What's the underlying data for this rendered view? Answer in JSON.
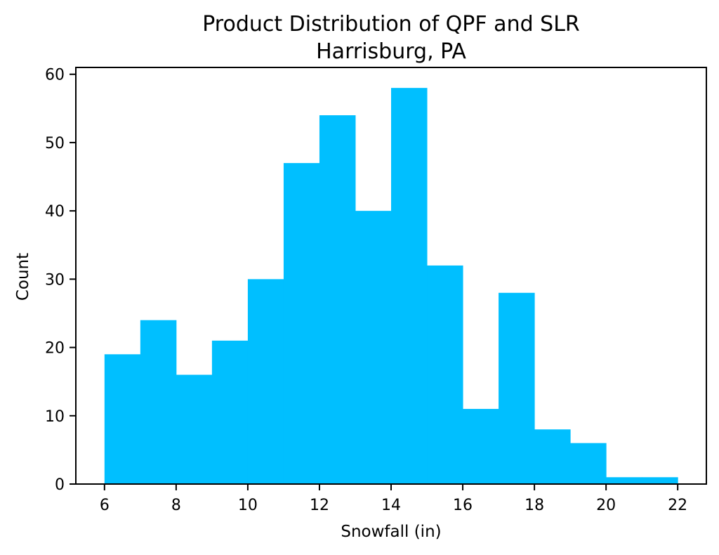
{
  "chart_data": {
    "type": "bar",
    "title": "Product Distribution of QPF and SLR",
    "subtitle": "Harrisburg, PA",
    "xlabel": "Snowfall (in)",
    "ylabel": "Count",
    "bin_edges": [
      6,
      7,
      8,
      9,
      10,
      11,
      12,
      13,
      14,
      15,
      16,
      17,
      18,
      19,
      20,
      21,
      22
    ],
    "values": [
      19,
      24,
      16,
      21,
      30,
      47,
      54,
      40,
      58,
      32,
      11,
      28,
      8,
      6,
      1,
      1
    ],
    "xlim": [
      5.2,
      22.8
    ],
    "ylim": [
      0,
      61
    ],
    "xticks": [
      6,
      8,
      10,
      12,
      14,
      16,
      18,
      20,
      22
    ],
    "yticks": [
      0,
      10,
      20,
      30,
      40,
      50,
      60
    ],
    "grid": false,
    "bar_color": "#00bfff"
  }
}
